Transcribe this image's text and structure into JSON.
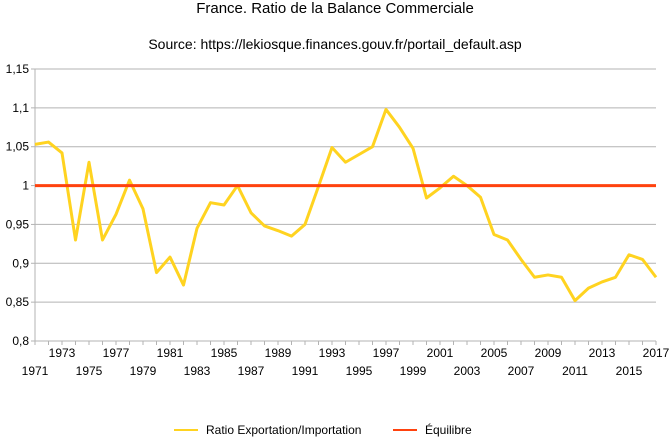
{
  "chart_data": {
    "type": "line",
    "title": "France. Ratio de la Balance Commerciale",
    "subtitle": "Source: https://lekiosque.finances.gouv.fr/portail_default.asp",
    "xlabel": "",
    "ylabel": "",
    "x": [
      1971,
      1972,
      1973,
      1974,
      1975,
      1976,
      1977,
      1978,
      1979,
      1980,
      1981,
      1982,
      1983,
      1984,
      1985,
      1986,
      1987,
      1988,
      1989,
      1990,
      1991,
      1992,
      1993,
      1994,
      1995,
      1996,
      1997,
      1998,
      1999,
      2000,
      2001,
      2002,
      2003,
      2004,
      2005,
      2006,
      2007,
      2008,
      2009,
      2010,
      2011,
      2012,
      2013,
      2014,
      2015,
      2016,
      2017
    ],
    "xlim": [
      1971,
      2017
    ],
    "ylim": [
      0.8,
      1.15
    ],
    "y_ticks": [
      "0,8",
      "0,85",
      "0,9",
      "0,95",
      "1",
      "1,05",
      "1,1",
      "1,15"
    ],
    "x_ticks_upper": [
      "1973",
      "1977",
      "1981",
      "1985",
      "1989",
      "1993",
      "1997",
      "2001",
      "2005",
      "2009",
      "2013",
      "2017"
    ],
    "x_ticks_lower": [
      "1971",
      "1975",
      "1979",
      "1983",
      "1987",
      "1991",
      "1995",
      "1999",
      "2003",
      "2007",
      "2011",
      "2015"
    ],
    "grid": "horizontal",
    "legend_position": "bottom",
    "series": [
      {
        "name": "Ratio Exportation/Importation",
        "color": "#ffd320",
        "values": [
          1.053,
          1.056,
          1.042,
          0.93,
          1.03,
          0.93,
          0.963,
          1.007,
          0.97,
          0.888,
          0.908,
          0.872,
          0.945,
          0.978,
          0.975,
          1.0,
          0.965,
          0.948,
          0.942,
          0.935,
          0.95,
          0.999,
          1.049,
          1.03,
          1.04,
          1.05,
          1.098,
          1.075,
          1.048,
          0.984,
          0.997,
          1.012,
          1.0,
          0.985,
          0.937,
          0.93,
          0.905,
          0.882,
          0.885,
          0.882,
          0.852,
          0.868,
          0.876,
          0.882,
          0.911,
          0.905,
          0.882
        ]
      },
      {
        "name": "Équilibre",
        "color": "#ff420e",
        "values": [
          1,
          1,
          1,
          1,
          1,
          1,
          1,
          1,
          1,
          1,
          1,
          1,
          1,
          1,
          1,
          1,
          1,
          1,
          1,
          1,
          1,
          1,
          1,
          1,
          1,
          1,
          1,
          1,
          1,
          1,
          1,
          1,
          1,
          1,
          1,
          1,
          1,
          1,
          1,
          1,
          1,
          1,
          1,
          1,
          1,
          1,
          1
        ]
      }
    ]
  }
}
